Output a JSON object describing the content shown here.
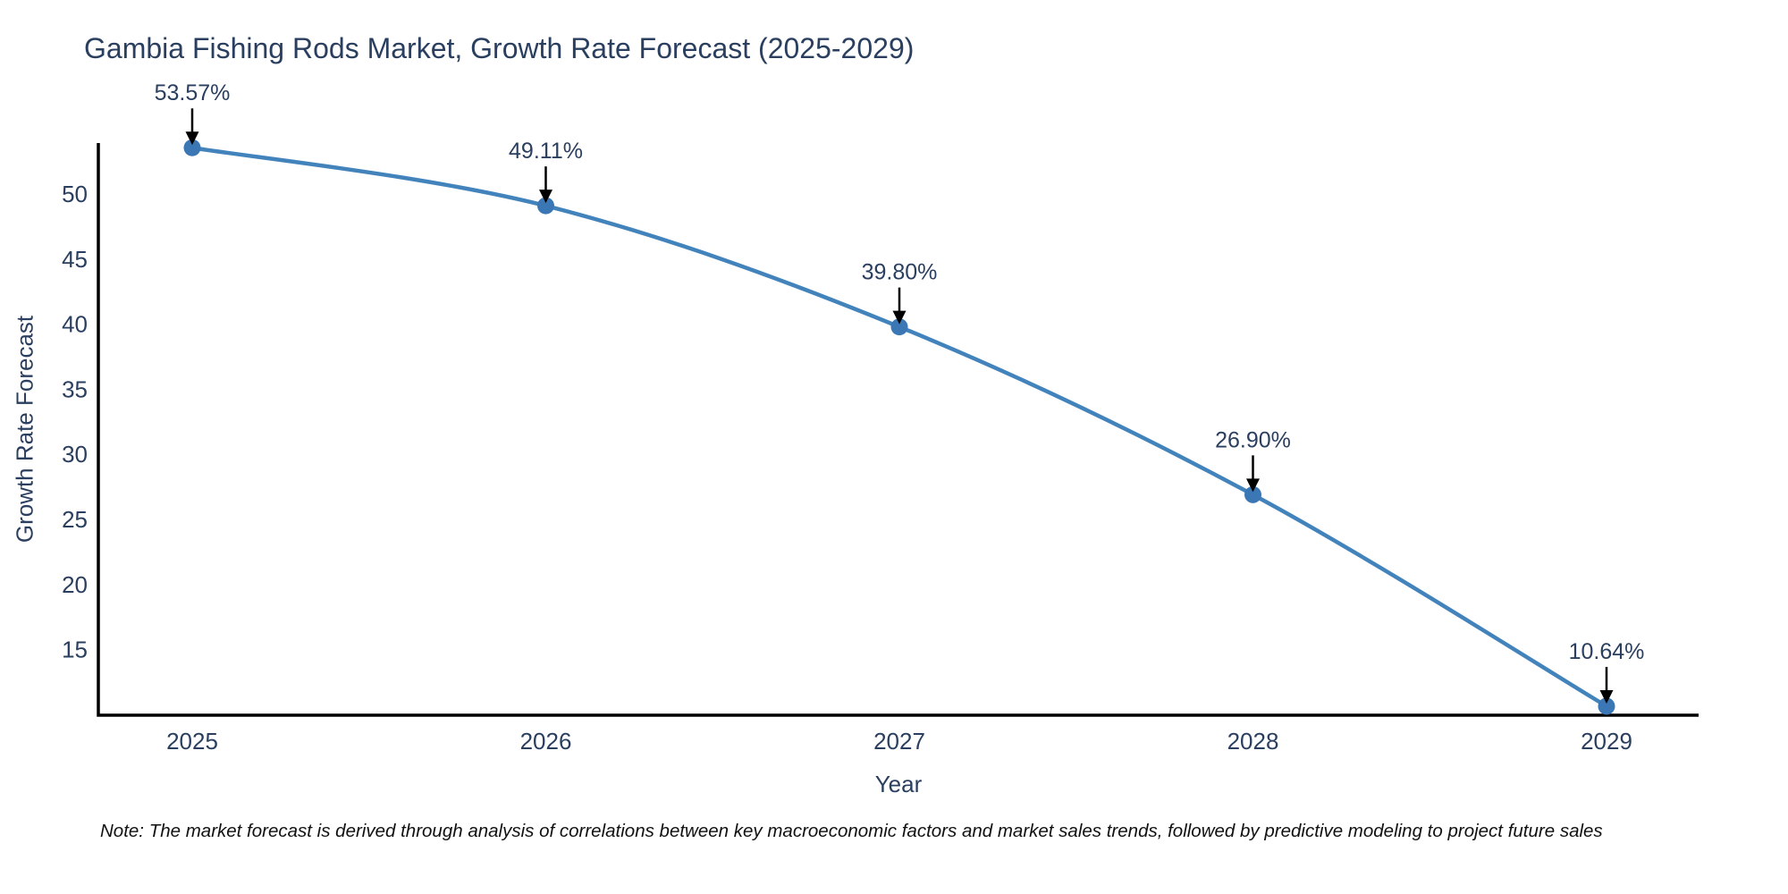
{
  "title": "Gambia Fishing Rods Market, Growth Rate Forecast (2025-2029)",
  "note": "Note: The market forecast is derived through analysis of correlations between key macroeconomic factors and market sales trends, followed by predictive modeling to project future sales",
  "chart_data": {
    "type": "line",
    "title": "Gambia Fishing Rods Market, Growth Rate Forecast (2025-2029)",
    "xlabel": "Year",
    "ylabel": "Growth Rate Forecast",
    "x": [
      2025,
      2026,
      2027,
      2028,
      2029
    ],
    "series": [
      {
        "name": "Growth Rate Forecast",
        "values": [
          53.57,
          49.11,
          39.8,
          26.9,
          10.64
        ]
      }
    ],
    "point_labels": [
      "53.57%",
      "49.11%",
      "39.80%",
      "26.90%",
      "10.64%"
    ],
    "yticks": [
      15,
      20,
      25,
      30,
      35,
      40,
      45,
      50
    ],
    "ylim": [
      9.95,
      53.93
    ],
    "line_shape": "spline",
    "grid": false,
    "legend": "none",
    "colors": {
      "line": "#4383bc",
      "marker": "#3a77b4",
      "arrow": "#000000",
      "axis": "#000000",
      "text": "#2a3f5f",
      "note_text": "#111111",
      "background": "#ffffff"
    }
  }
}
